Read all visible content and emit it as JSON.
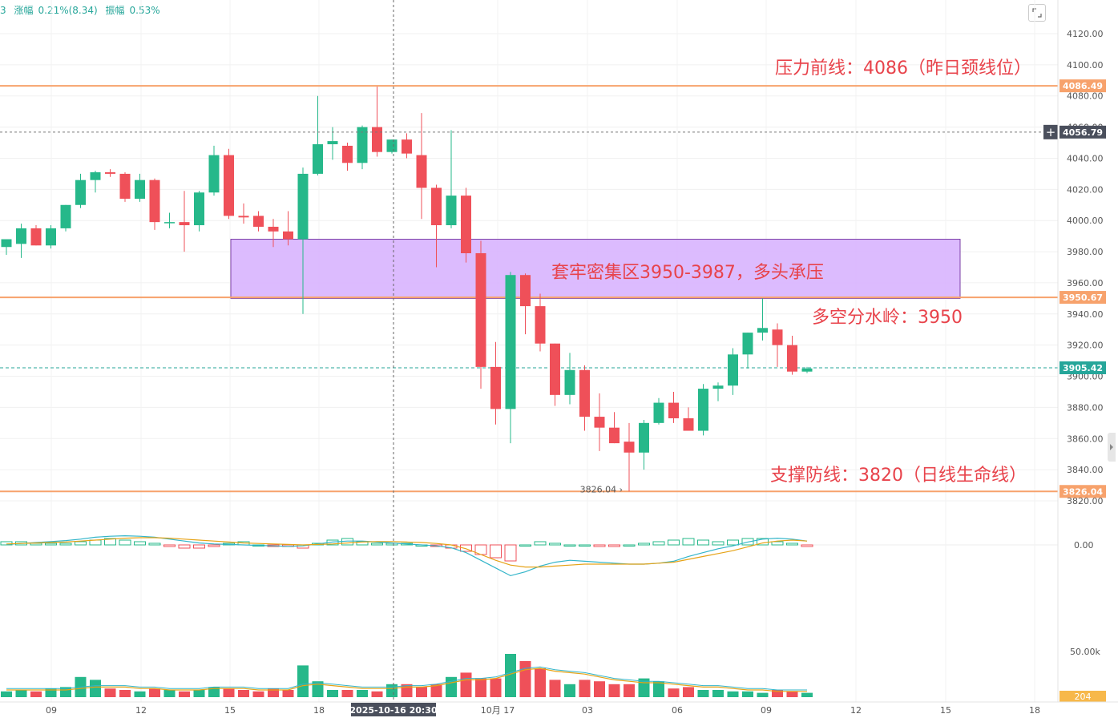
{
  "header": {
    "prefix": "3",
    "change_label": "涨幅",
    "change_value": "0.21%(8.34)",
    "amplitude_label": "振幅",
    "amplitude_value": "0.53%"
  },
  "colors": {
    "up": "#26b88a",
    "down": "#ef5059",
    "hline": "#f7a26c",
    "zone_fill": "#d8b4fe",
    "zone_stroke": "#7b3fa6",
    "annotation": "#e8434b",
    "macd_dif": "#33b5c9",
    "macd_dea": "#e6a317",
    "price_tag_orange": "#f7a26c",
    "price_tag_teal": "#26a69a",
    "price_tag_gray": "#4a4f5c",
    "volume_tag": "#f7b84a"
  },
  "chart_data": {
    "type": "candlestick",
    "title": "",
    "y_range": [
      3820,
      4125
    ],
    "y_ticks": [
      4120,
      4100,
      4080,
      4060,
      4040,
      4020,
      4000,
      3980,
      3960,
      3940,
      3920,
      3900,
      3880,
      3860,
      3840,
      3820
    ],
    "x_tick_labels": [
      "09",
      "12",
      "15",
      "18",
      "10月 17",
      "03",
      "06",
      "09",
      "12",
      "15",
      "18"
    ],
    "crosshair_date_label": "2025-10-16 20:30",
    "crosshair_price_label": "4056.79",
    "crosshair_price": 4056.79,
    "candles": [
      {
        "o": 3983,
        "h": 3986,
        "l": 3978,
        "c": 3988
      },
      {
        "o": 3985,
        "h": 3998,
        "l": 3976,
        "c": 3995
      },
      {
        "o": 3995,
        "h": 3997,
        "l": 3984,
        "c": 3984
      },
      {
        "o": 3984,
        "h": 3997,
        "l": 3982,
        "c": 3995
      },
      {
        "o": 3995,
        "h": 4010,
        "l": 3993,
        "c": 4010
      },
      {
        "o": 4010,
        "h": 4030,
        "l": 4008,
        "c": 4026
      },
      {
        "o": 4026,
        "h": 4032,
        "l": 4018,
        "c": 4031
      },
      {
        "o": 4031,
        "h": 4033,
        "l": 4028,
        "c": 4030
      },
      {
        "o": 4030,
        "h": 4031,
        "l": 4012,
        "c": 4014
      },
      {
        "o": 4014,
        "h": 4030,
        "l": 4012,
        "c": 4026
      },
      {
        "o": 4026,
        "h": 4027,
        "l": 3994,
        "c": 3999
      },
      {
        "o": 3999,
        "h": 4005,
        "l": 3995,
        "c": 3999
      },
      {
        "o": 3999,
        "h": 4019,
        "l": 3980,
        "c": 3997
      },
      {
        "o": 3997,
        "h": 4019,
        "l": 3993,
        "c": 4018
      },
      {
        "o": 4018,
        "h": 4048,
        "l": 4016,
        "c": 4042
      },
      {
        "o": 4042,
        "h": 4046,
        "l": 4001,
        "c": 4003
      },
      {
        "o": 4003,
        "h": 4011,
        "l": 3998,
        "c": 4002
      },
      {
        "o": 4003,
        "h": 4006,
        "l": 3993,
        "c": 3996
      },
      {
        "o": 3996,
        "h": 4001,
        "l": 3983,
        "c": 3993
      },
      {
        "o": 3993,
        "h": 4006,
        "l": 3984,
        "c": 3988
      },
      {
        "o": 3988,
        "h": 4034,
        "l": 3940,
        "c": 4030
      },
      {
        "o": 4030,
        "h": 4080,
        "l": 4029,
        "c": 4049
      },
      {
        "o": 4049,
        "h": 4060,
        "l": 4039,
        "c": 4051
      },
      {
        "o": 4048,
        "h": 4050,
        "l": 4032,
        "c": 4037
      },
      {
        "o": 4037,
        "h": 4061,
        "l": 4033,
        "c": 4060
      },
      {
        "o": 4060,
        "h": 4086,
        "l": 4041,
        "c": 4044
      },
      {
        "o": 4044,
        "h": 4052,
        "l": 4043,
        "c": 4052
      },
      {
        "o": 4052,
        "h": 4056,
        "l": 4040,
        "c": 4043
      },
      {
        "o": 4042,
        "h": 4069,
        "l": 4001,
        "c": 4021
      },
      {
        "o": 4021,
        "h": 4023,
        "l": 3970,
        "c": 3997
      },
      {
        "o": 3997,
        "h": 4058,
        "l": 3995,
        "c": 4016
      },
      {
        "o": 4016,
        "h": 4021,
        "l": 3973,
        "c": 3979
      },
      {
        "o": 3979,
        "h": 3987,
        "l": 3892,
        "c": 3906
      },
      {
        "o": 3906,
        "h": 3922,
        "l": 3869,
        "c": 3879
      },
      {
        "o": 3879,
        "h": 3967,
        "l": 3857,
        "c": 3965
      },
      {
        "o": 3965,
        "h": 3966,
        "l": 3927,
        "c": 3945
      },
      {
        "o": 3945,
        "h": 3953,
        "l": 3916,
        "c": 3921
      },
      {
        "o": 3921,
        "h": 3921,
        "l": 3881,
        "c": 3888
      },
      {
        "o": 3888,
        "h": 3915,
        "l": 3882,
        "c": 3904
      },
      {
        "o": 3904,
        "h": 3907,
        "l": 3865,
        "c": 3874
      },
      {
        "o": 3874,
        "h": 3889,
        "l": 3852,
        "c": 3867
      },
      {
        "o": 3867,
        "h": 3877,
        "l": 3857,
        "c": 3857
      },
      {
        "o": 3858,
        "h": 3870,
        "l": 3826.04,
        "c": 3851
      },
      {
        "o": 3851,
        "h": 3872,
        "l": 3840,
        "c": 3870
      },
      {
        "o": 3870,
        "h": 3886,
        "l": 3869,
        "c": 3883
      },
      {
        "o": 3883,
        "h": 3890,
        "l": 3870,
        "c": 3873
      },
      {
        "o": 3873,
        "h": 3880,
        "l": 3865,
        "c": 3865
      },
      {
        "o": 3865,
        "h": 3895,
        "l": 3862,
        "c": 3892
      },
      {
        "o": 3892,
        "h": 3896,
        "l": 3884,
        "c": 3894
      },
      {
        "o": 3894,
        "h": 3918,
        "l": 3888,
        "c": 3914
      },
      {
        "o": 3914,
        "h": 3928,
        "l": 3905,
        "c": 3928
      },
      {
        "o": 3928,
        "h": 3950,
        "l": 3923,
        "c": 3931
      },
      {
        "o": 3930,
        "h": 3934,
        "l": 3906,
        "c": 3920
      },
      {
        "o": 3920,
        "h": 3926,
        "l": 3901,
        "c": 3903
      },
      {
        "o": 3903,
        "h": 3906,
        "l": 3902,
        "c": 3905
      }
    ],
    "horizontal_lines": [
      {
        "price": 4086.49,
        "label": "4086.49"
      },
      {
        "price": 3950.67,
        "label": "3950.67"
      },
      {
        "price": 3826.04,
        "label": "3826.04"
      }
    ],
    "current_price": {
      "price": 3905.42,
      "label": "3905.42"
    },
    "low_marker": {
      "price": 3826.04,
      "label": "3826.04"
    },
    "zone": {
      "from": 3950,
      "to": 3988
    },
    "annotations": {
      "resistance": "压力前线：4086（昨日颈线位）",
      "zone": "套牢密集区3950-3987，多头承压",
      "divide": "多空分水岭：3950",
      "support": "支撑防线：3820（日线生命线）"
    },
    "macd": {
      "zero_label": "0.00",
      "hist": [
        2,
        2,
        1,
        1,
        1,
        2,
        3,
        4,
        3,
        2,
        1,
        -1,
        -2,
        -2,
        -1,
        1,
        2,
        0,
        -1,
        -1,
        -2,
        1,
        3,
        4,
        2,
        1,
        1,
        1,
        0,
        -1,
        -2,
        -4,
        -6,
        -8,
        -10,
        0,
        2,
        1,
        0,
        0,
        -1,
        -1,
        0,
        1,
        2,
        3,
        4,
        3,
        2,
        3,
        4,
        4,
        2,
        1,
        -1
      ],
      "dif": [
        0.5,
        1.5,
        2.5,
        3.5,
        4.5,
        6,
        8,
        9,
        9.5,
        9,
        8,
        6,
        4,
        2,
        1,
        0.5,
        0,
        -0.5,
        -1,
        -1.5,
        -1,
        1,
        3,
        4,
        4,
        3,
        2,
        1,
        0,
        -1,
        -3,
        -8,
        -16,
        -24,
        -32,
        -28,
        -22,
        -18,
        -16,
        -17,
        -18,
        -19,
        -20,
        -20,
        -19,
        -17,
        -12,
        -8,
        -4,
        -1,
        3,
        6,
        7,
        6,
        4
      ],
      "dea": [
        1,
        1.5,
        2,
        2.5,
        3,
        4,
        5,
        6,
        7,
        7.5,
        7.5,
        7,
        6,
        5,
        4,
        3,
        2,
        1.5,
        1,
        0.5,
        0,
        0.5,
        1,
        2,
        3,
        3.5,
        3.5,
        3,
        2.5,
        1.5,
        0,
        -4,
        -10,
        -16,
        -21,
        -23,
        -23,
        -22,
        -21,
        -20,
        -20,
        -20,
        -20,
        -20,
        -19,
        -18,
        -15,
        -12,
        -9,
        -6,
        -2,
        2,
        4,
        5,
        4
      ]
    },
    "volume": {
      "axis_label": "50.00k",
      "current_label": "204",
      "values": [
        4,
        5,
        4,
        6,
        7,
        14,
        12,
        6,
        5,
        4,
        6,
        5,
        4,
        5,
        7,
        6,
        5,
        4,
        6,
        5,
        22,
        11,
        5,
        5,
        5,
        4,
        9,
        9,
        7,
        9,
        14,
        17,
        13,
        13,
        30,
        25,
        20,
        12,
        9,
        12,
        11,
        9,
        9,
        13,
        11,
        6,
        7,
        5,
        5,
        4,
        4,
        3,
        5,
        4,
        3
      ],
      "ma": [
        5,
        5,
        5,
        5,
        5,
        6,
        7,
        7,
        7,
        6,
        6,
        5,
        5,
        5,
        6,
        6,
        6,
        5,
        5,
        5,
        8,
        9,
        8,
        7,
        6,
        6,
        6,
        7,
        7,
        8,
        10,
        12,
        12,
        13,
        16,
        19,
        20,
        18,
        17,
        16,
        14,
        12,
        11,
        10,
        10,
        9,
        8,
        7,
        7,
        6,
        5,
        5,
        4,
        4,
        4
      ]
    }
  }
}
